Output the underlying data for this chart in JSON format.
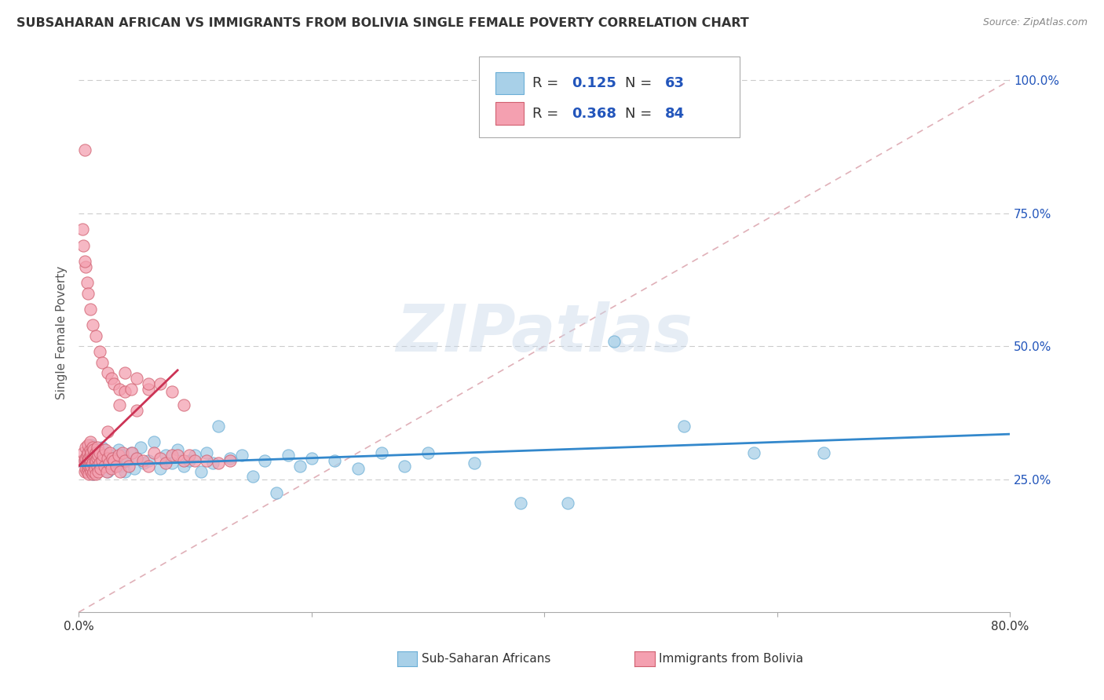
{
  "title": "SUBSAHARAN AFRICAN VS IMMIGRANTS FROM BOLIVIA SINGLE FEMALE POVERTY CORRELATION CHART",
  "source": "Source: ZipAtlas.com",
  "ylabel": "Single Female Poverty",
  "xlim": [
    0.0,
    0.8
  ],
  "ylim": [
    0.0,
    1.05
  ],
  "xtick_labels": [
    "0.0%",
    "",
    "",
    "",
    "80.0%"
  ],
  "xtick_vals": [
    0.0,
    0.2,
    0.4,
    0.6,
    0.8
  ],
  "ytick_labels": [
    "25.0%",
    "50.0%",
    "75.0%",
    "100.0%"
  ],
  "ytick_vals": [
    0.25,
    0.5,
    0.75,
    1.0
  ],
  "watermark": "ZIPatlas",
  "legend_label1": "Sub-Saharan Africans",
  "legend_label2": "Immigrants from Bolivia",
  "r1": "0.125",
  "n1": "63",
  "r2": "0.368",
  "n2": "84",
  "color1": "#a8d0e8",
  "color1_edge": "#6aaed6",
  "color2": "#f4a0b0",
  "color2_edge": "#d06070",
  "blue_text": "#2255bb",
  "trendline1_x": [
    0.0,
    0.8
  ],
  "trendline1_y": [
    0.275,
    0.335
  ],
  "trendline2_x": [
    0.0,
    0.085
  ],
  "trendline2_y": [
    0.275,
    0.455
  ],
  "diag_color": "#e0b0b8",
  "scatter1_x": [
    0.005,
    0.007,
    0.008,
    0.009,
    0.01,
    0.011,
    0.012,
    0.013,
    0.014,
    0.015,
    0.017,
    0.018,
    0.019,
    0.02,
    0.022,
    0.025,
    0.027,
    0.028,
    0.03,
    0.032,
    0.034,
    0.036,
    0.038,
    0.04,
    0.042,
    0.045,
    0.048,
    0.05,
    0.053,
    0.056,
    0.06,
    0.065,
    0.07,
    0.075,
    0.08,
    0.085,
    0.09,
    0.095,
    0.1,
    0.105,
    0.11,
    0.115,
    0.12,
    0.13,
    0.14,
    0.15,
    0.16,
    0.17,
    0.18,
    0.19,
    0.2,
    0.22,
    0.24,
    0.26,
    0.28,
    0.3,
    0.34,
    0.38,
    0.42,
    0.46,
    0.52,
    0.58,
    0.64
  ],
  "scatter1_y": [
    0.285,
    0.295,
    0.27,
    0.305,
    0.28,
    0.315,
    0.26,
    0.29,
    0.275,
    0.3,
    0.285,
    0.27,
    0.295,
    0.31,
    0.28,
    0.265,
    0.295,
    0.275,
    0.29,
    0.28,
    0.305,
    0.275,
    0.295,
    0.265,
    0.285,
    0.3,
    0.27,
    0.29,
    0.31,
    0.28,
    0.285,
    0.32,
    0.27,
    0.295,
    0.28,
    0.305,
    0.275,
    0.285,
    0.295,
    0.265,
    0.3,
    0.28,
    0.35,
    0.29,
    0.295,
    0.255,
    0.285,
    0.225,
    0.295,
    0.275,
    0.29,
    0.285,
    0.27,
    0.3,
    0.275,
    0.3,
    0.28,
    0.205,
    0.205,
    0.51,
    0.35,
    0.3,
    0.3
  ],
  "scatter2_x": [
    0.003,
    0.004,
    0.005,
    0.005,
    0.006,
    0.006,
    0.006,
    0.007,
    0.007,
    0.007,
    0.008,
    0.008,
    0.008,
    0.008,
    0.009,
    0.009,
    0.009,
    0.01,
    0.01,
    0.01,
    0.01,
    0.01,
    0.011,
    0.011,
    0.011,
    0.011,
    0.012,
    0.012,
    0.012,
    0.012,
    0.013,
    0.013,
    0.013,
    0.014,
    0.014,
    0.014,
    0.015,
    0.015,
    0.015,
    0.016,
    0.016,
    0.016,
    0.017,
    0.017,
    0.018,
    0.018,
    0.019,
    0.02,
    0.021,
    0.022,
    0.023,
    0.024,
    0.025,
    0.026,
    0.027,
    0.028,
    0.029,
    0.03,
    0.032,
    0.034,
    0.036,
    0.038,
    0.04,
    0.043,
    0.046,
    0.05,
    0.055,
    0.06,
    0.065,
    0.07,
    0.075,
    0.08,
    0.085,
    0.09,
    0.095,
    0.1,
    0.11,
    0.12,
    0.13,
    0.05,
    0.06,
    0.04,
    0.035,
    0.025
  ],
  "scatter2_y": [
    0.285,
    0.3,
    0.265,
    0.285,
    0.27,
    0.29,
    0.31,
    0.28,
    0.295,
    0.265,
    0.285,
    0.27,
    0.3,
    0.315,
    0.275,
    0.29,
    0.26,
    0.28,
    0.295,
    0.27,
    0.305,
    0.32,
    0.265,
    0.285,
    0.3,
    0.275,
    0.29,
    0.26,
    0.31,
    0.28,
    0.295,
    0.265,
    0.305,
    0.28,
    0.295,
    0.27,
    0.285,
    0.3,
    0.26,
    0.29,
    0.275,
    0.31,
    0.265,
    0.295,
    0.28,
    0.3,
    0.27,
    0.285,
    0.295,
    0.275,
    0.305,
    0.265,
    0.29,
    0.28,
    0.3,
    0.27,
    0.29,
    0.285,
    0.275,
    0.295,
    0.265,
    0.3,
    0.285,
    0.275,
    0.3,
    0.29,
    0.285,
    0.275,
    0.3,
    0.29,
    0.28,
    0.295,
    0.295,
    0.285,
    0.295,
    0.285,
    0.285,
    0.28,
    0.285,
    0.38,
    0.42,
    0.45,
    0.39,
    0.34
  ],
  "scatter2_outliers_x": [
    0.005,
    0.006,
    0.007,
    0.008,
    0.01,
    0.012,
    0.015,
    0.018,
    0.02,
    0.025,
    0.028,
    0.03,
    0.035,
    0.04,
    0.045,
    0.05,
    0.06,
    0.07,
    0.08,
    0.09,
    0.003,
    0.004,
    0.005
  ],
  "scatter2_outliers_y": [
    0.87,
    0.65,
    0.62,
    0.6,
    0.57,
    0.54,
    0.52,
    0.49,
    0.47,
    0.45,
    0.44,
    0.43,
    0.42,
    0.415,
    0.42,
    0.44,
    0.43,
    0.43,
    0.415,
    0.39,
    0.72,
    0.69,
    0.66
  ]
}
